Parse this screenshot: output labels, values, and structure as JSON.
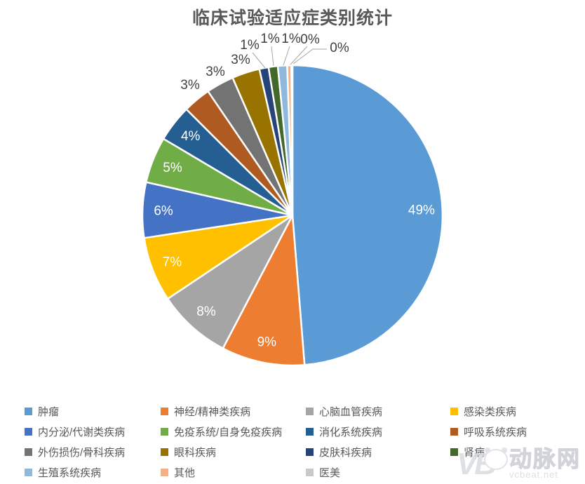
{
  "page": {
    "background": "#FFFFFF"
  },
  "chart_data": {
    "type": "pie",
    "title": "临床试验适应症类别统计",
    "legend_position": "bottom",
    "grid": false,
    "categories": [
      "肿瘤",
      "神经/精神类疾病",
      "心脑血管疾病",
      "感染类疾病",
      "内分泌/代谢类疾病",
      "免疫系统/自身免疫疾病",
      "消化系统疾病",
      "呼吸系统疾病",
      "外伤损伤/骨科疾病",
      "眼科疾病",
      "皮肤科疾病",
      "肾病",
      "生殖系统疾病",
      "其他",
      "医美"
    ],
    "values": [
      49,
      9,
      8,
      7,
      6,
      5,
      4,
      3,
      3,
      3,
      1,
      1,
      1,
      0,
      0
    ],
    "unit": "%",
    "percent_labels": [
      "49%",
      "9%",
      "8%",
      "7%",
      "6%",
      "5%",
      "4%",
      "3%",
      "3%",
      "3%",
      "1%",
      "1%",
      "1%",
      "0%",
      "0%"
    ],
    "colors": [
      "#5B9BD5",
      "#ED7D31",
      "#A5A5A5",
      "#FFC000",
      "#4472C4",
      "#70AD47",
      "#255E91",
      "#AE5A21",
      "#737373",
      "#997300",
      "#264478",
      "#43682B",
      "#8FB9DC",
      "#F4B183",
      "#C9C9C9"
    ],
    "label_color_inside": "#FFFFFF",
    "label_color_outside": "#404040",
    "title_color": "#595959",
    "legend_text_color": "#595959",
    "leader_line_color": "#A6A6A6"
  },
  "watermark": {
    "logo_text": "VB",
    "mascot": "panda",
    "brand": "动脉网",
    "domain": "vcbeat.net"
  }
}
